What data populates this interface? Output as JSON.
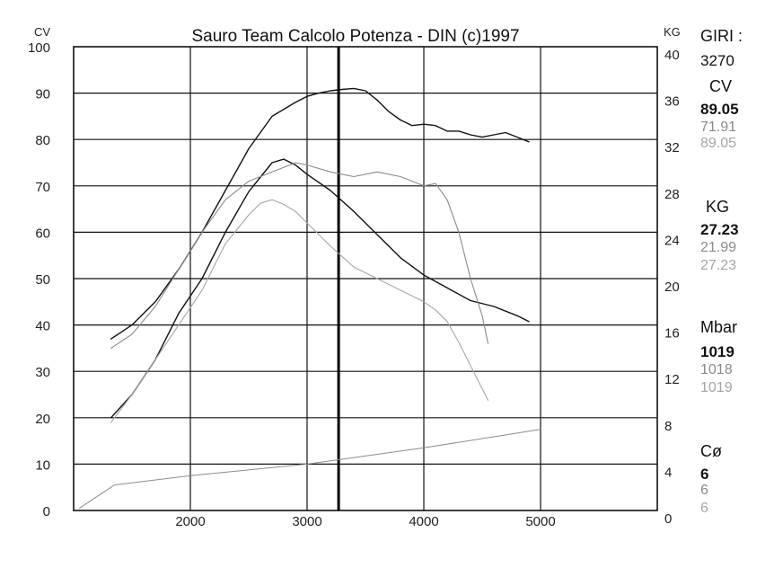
{
  "chart_data": {
    "type": "line",
    "title": "Sauro Team Calcolo Potenza - DIN  (c)1997",
    "left_axis": {
      "label": "CV",
      "ticks": [
        "100",
        "90",
        "80",
        "70",
        "60",
        "50",
        "40",
        "30",
        "20",
        "10",
        "0"
      ],
      "range": [
        0,
        100
      ]
    },
    "right_axis": {
      "label": "KG",
      "ticks": [
        "40",
        "36",
        "32",
        "28",
        "24",
        "20",
        "16",
        "12",
        "8",
        "4",
        "0"
      ],
      "range": [
        0,
        40
      ]
    },
    "x_axis": {
      "ticks": [
        "2000",
        "3000",
        "4000",
        "5000"
      ],
      "range": [
        1000,
        6000
      ]
    },
    "grid": true,
    "cursor_x": 3270,
    "series": [
      {
        "axis": "left",
        "color": "#111111",
        "width": 1.4,
        "x": [
          1320,
          1500,
          1700,
          1900,
          2100,
          2300,
          2500,
          2700,
          2900,
          3000,
          3100,
          3200,
          3300,
          3400,
          3500,
          3600,
          3700,
          3800,
          3900,
          4000,
          4100,
          4200,
          4300,
          4400,
          4500,
          4600,
          4700,
          4800,
          4900
        ],
        "y": [
          37,
          40,
          45,
          52,
          60,
          69,
          78,
          85,
          88,
          89.3,
          90,
          90.5,
          90.8,
          91,
          90.5,
          88.5,
          86,
          84.2,
          83,
          83.3,
          83,
          81.8,
          81.8,
          81,
          80.5,
          81,
          81.5,
          80.5,
          79.5
        ]
      },
      {
        "axis": "right",
        "color": "#111111",
        "width": 1.4,
        "x": [
          1320,
          1500,
          1700,
          1900,
          2100,
          2300,
          2500,
          2700,
          2800,
          2900,
          3000,
          3200,
          3400,
          3600,
          3800,
          4000,
          4200,
          4400,
          4600,
          4800,
          4900
        ],
        "y": [
          8,
          10,
          13,
          17,
          20,
          24,
          27.5,
          30,
          30.3,
          29.8,
          29,
          27.6,
          25.8,
          23.8,
          21.8,
          20.3,
          19.2,
          18.1,
          17.6,
          16.8,
          16.3
        ]
      },
      {
        "axis": "left",
        "color": "#8a8a8a",
        "width": 1.1,
        "x": [
          1320,
          1500,
          1700,
          1900,
          2100,
          2300,
          2500,
          2600,
          2700,
          2800,
          2900,
          3000,
          3200,
          3400,
          3600,
          3800,
          4000,
          4100,
          4200,
          4300,
          4400,
          4500,
          4550
        ],
        "y": [
          35,
          38,
          44,
          52,
          60,
          67,
          71,
          72,
          73,
          74,
          75,
          74.5,
          73,
          72,
          73,
          72,
          70,
          70.5,
          67,
          60,
          50,
          42,
          36
        ]
      },
      {
        "axis": "right",
        "color": "#a6a6a6",
        "width": 1.1,
        "x": [
          1320,
          1500,
          1700,
          1900,
          2100,
          2300,
          2500,
          2600,
          2700,
          2800,
          2900,
          3000,
          3200,
          3400,
          3600,
          3800,
          4000,
          4100,
          4200,
          4300,
          4400,
          4500,
          4550
        ],
        "y": [
          7.6,
          10,
          13,
          16,
          19,
          23,
          25.5,
          26.5,
          26.8,
          26.4,
          25.8,
          24.8,
          22.8,
          21,
          20,
          19,
          18,
          17.3,
          16.3,
          14.5,
          12.5,
          10.5,
          9.5
        ]
      },
      {
        "axis": "left",
        "color": "#8c8c8c",
        "width": 1.0,
        "x": [
          1050,
          1350,
          2000,
          3000,
          4000,
          5000
        ],
        "y": [
          0.5,
          5.5,
          7.5,
          10,
          13.5,
          17.5
        ]
      }
    ]
  },
  "side_panel": [
    {
      "name": "giri",
      "label": "GIRI :",
      "values": [
        "3270"
      ]
    },
    {
      "name": "cv",
      "label": "CV",
      "values": [
        "89.05",
        "71.91",
        "89.05"
      ]
    },
    {
      "name": "kg",
      "label": "KG",
      "values": [
        "27.23",
        "21.99",
        "27.23"
      ]
    },
    {
      "name": "mbar",
      "label": "Mbar",
      "values": [
        "1019",
        "1018",
        "1019"
      ]
    },
    {
      "name": "co",
      "label": "Cø",
      "values": [
        "6",
        "6",
        "6"
      ]
    }
  ]
}
